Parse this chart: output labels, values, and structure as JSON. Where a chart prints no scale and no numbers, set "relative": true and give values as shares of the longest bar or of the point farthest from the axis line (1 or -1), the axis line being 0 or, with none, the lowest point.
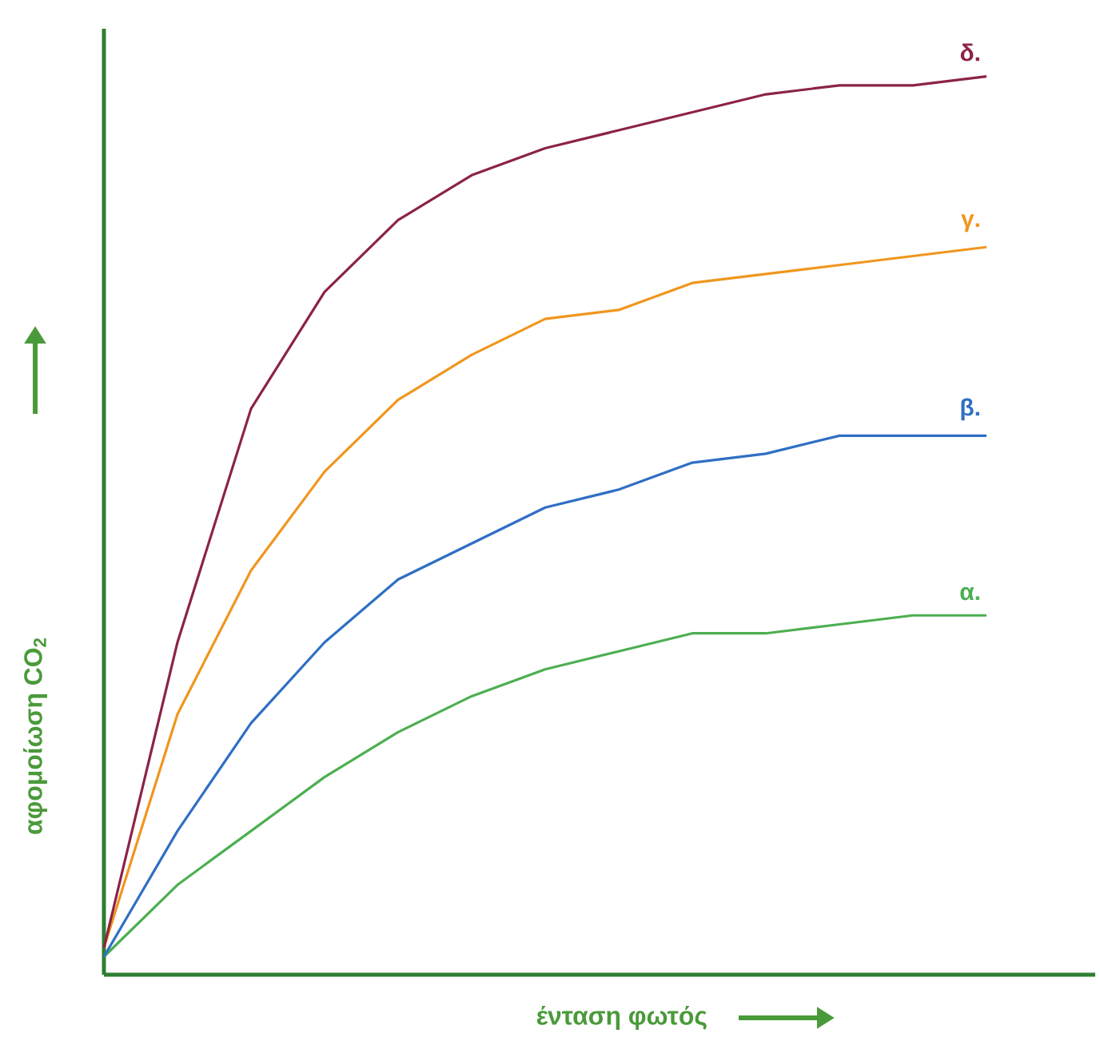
{
  "chart_data": {
    "type": "line",
    "relative": true,
    "xlabel": "ένταση φωτός",
    "ylabel": "αφομοίωση CO$_{2}$",
    "categories": [
      null,
      null,
      null,
      null,
      null,
      null,
      null,
      null,
      null,
      null,
      null,
      null,
      null
    ],
    "series": [
      {
        "name": "α.",
        "color": "#4caf50",
        "values": [
          0.02,
          0.1,
          0.16,
          0.22,
          0.27,
          0.31,
          0.34,
          0.36,
          0.38,
          0.38,
          0.39,
          0.4,
          0.4
        ]
      },
      {
        "name": "β.",
        "color": "#2f6fc4",
        "values": [
          0.02,
          0.16,
          0.28,
          0.37,
          0.44,
          0.48,
          0.52,
          0.54,
          0.57,
          0.58,
          0.6,
          0.6,
          0.6
        ]
      },
      {
        "name": "γ.",
        "color": "#f0961e",
        "values": [
          0.03,
          0.29,
          0.45,
          0.56,
          0.64,
          0.69,
          0.73,
          0.74,
          0.77,
          0.78,
          0.79,
          0.8,
          0.81
        ]
      },
      {
        "name": "δ.",
        "color": "#8b2346",
        "values": [
          0.03,
          0.37,
          0.63,
          0.76,
          0.84,
          0.89,
          0.92,
          0.94,
          0.96,
          0.98,
          0.99,
          0.99,
          1.0
        ]
      }
    ]
  }
}
